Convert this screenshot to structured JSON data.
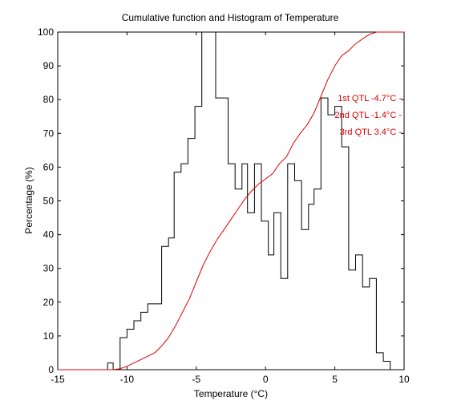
{
  "chart_data": {
    "type": "line",
    "title": "Cumulative function and Histogram of Temperature",
    "xlabel": "Temperature (°C)",
    "ylabel": "Percentage (%)",
    "xlim": [
      -15,
      10
    ],
    "ylim": [
      0,
      100
    ],
    "x_ticks": [
      -15,
      -10,
      -5,
      0,
      5,
      10
    ],
    "y_ticks": [
      0,
      10,
      20,
      30,
      40,
      50,
      60,
      70,
      80,
      90,
      100
    ],
    "grid": false,
    "legend": "none",
    "series": [
      {
        "kind": "step-histogram",
        "color": "#000000",
        "points": [
          [
            -15,
            0
          ],
          [
            -11.4,
            0
          ],
          [
            -11.4,
            2
          ],
          [
            -11,
            2
          ],
          [
            -11,
            0
          ],
          [
            -10.5,
            0
          ],
          [
            -10.5,
            9.5
          ],
          [
            -10,
            9.5
          ],
          [
            -10,
            12
          ],
          [
            -9.5,
            12
          ],
          [
            -9.5,
            14.5
          ],
          [
            -9,
            14.5
          ],
          [
            -9,
            17
          ],
          [
            -8.5,
            17
          ],
          [
            -8.5,
            19.5
          ],
          [
            -7.5,
            19.5
          ],
          [
            -7.5,
            36.5
          ],
          [
            -7,
            36.5
          ],
          [
            -7,
            39
          ],
          [
            -6.6,
            39
          ],
          [
            -6.6,
            58.5
          ],
          [
            -6.1,
            58.5
          ],
          [
            -6.1,
            61
          ],
          [
            -5.6,
            61
          ],
          [
            -5.6,
            68.5
          ],
          [
            -5.1,
            68.5
          ],
          [
            -5.1,
            78
          ],
          [
            -4.6,
            78
          ],
          [
            -4.6,
            100
          ],
          [
            -3.6,
            100
          ],
          [
            -3.6,
            80.5
          ],
          [
            -2.7,
            80.5
          ],
          [
            -2.7,
            61
          ],
          [
            -2.2,
            61
          ],
          [
            -2.2,
            53.5
          ],
          [
            -1.7,
            53.5
          ],
          [
            -1.7,
            61
          ],
          [
            -1.3,
            61
          ],
          [
            -1.3,
            46.5
          ],
          [
            -0.8,
            46.5
          ],
          [
            -0.8,
            61
          ],
          [
            -0.3,
            61
          ],
          [
            -0.3,
            44
          ],
          [
            0.2,
            44
          ],
          [
            0.2,
            34
          ],
          [
            0.6,
            34
          ],
          [
            0.6,
            46.5
          ],
          [
            1.1,
            46.5
          ],
          [
            1.1,
            27
          ],
          [
            1.6,
            27
          ],
          [
            1.6,
            61
          ],
          [
            2.1,
            61
          ],
          [
            2.1,
            56
          ],
          [
            2.6,
            56
          ],
          [
            2.6,
            41.5
          ],
          [
            3.1,
            41.5
          ],
          [
            3.1,
            49
          ],
          [
            3.5,
            49
          ],
          [
            3.5,
            53.5
          ],
          [
            4,
            53.5
          ],
          [
            4,
            80.5
          ],
          [
            4.5,
            80.5
          ],
          [
            4.5,
            75.5
          ],
          [
            5,
            75.5
          ],
          [
            5,
            78
          ],
          [
            5.5,
            78
          ],
          [
            5.5,
            66
          ],
          [
            6,
            66
          ],
          [
            6,
            29.5
          ],
          [
            6.5,
            29.5
          ],
          [
            6.5,
            34
          ],
          [
            7,
            34
          ],
          [
            7,
            24.5
          ],
          [
            7.5,
            24.5
          ],
          [
            7.5,
            27
          ],
          [
            8,
            27
          ],
          [
            8,
            5
          ],
          [
            8.5,
            5
          ],
          [
            8.5,
            2.5
          ],
          [
            9,
            2.5
          ],
          [
            9,
            0
          ],
          [
            10,
            0
          ]
        ]
      },
      {
        "kind": "cumulative",
        "color": "#dd0000",
        "points": [
          [
            -15,
            0
          ],
          [
            -11,
            0
          ],
          [
            -10.5,
            0.3
          ],
          [
            -10,
            1
          ],
          [
            -9.5,
            2
          ],
          [
            -9,
            3
          ],
          [
            -8.5,
            4
          ],
          [
            -8,
            5
          ],
          [
            -7.5,
            7
          ],
          [
            -7,
            9.5
          ],
          [
            -6.5,
            13
          ],
          [
            -6,
            17
          ],
          [
            -5.5,
            21
          ],
          [
            -5,
            26
          ],
          [
            -4.5,
            31
          ],
          [
            -4,
            35
          ],
          [
            -3.5,
            38.5
          ],
          [
            -3,
            41.5
          ],
          [
            -2.5,
            44.5
          ],
          [
            -2,
            47.5
          ],
          [
            -1.5,
            50.5
          ],
          [
            -1,
            53
          ],
          [
            -0.5,
            55
          ],
          [
            0,
            56.5
          ],
          [
            0.5,
            58
          ],
          [
            1,
            61
          ],
          [
            1.5,
            63
          ],
          [
            2,
            67
          ],
          [
            2.5,
            70
          ],
          [
            3,
            72.5
          ],
          [
            3.5,
            76
          ],
          [
            4,
            81
          ],
          [
            4.5,
            86
          ],
          [
            5,
            90
          ],
          [
            5.5,
            93
          ],
          [
            6,
            94.5
          ],
          [
            6.5,
            96.5
          ],
          [
            7,
            98
          ],
          [
            7.5,
            99.3
          ],
          [
            8,
            100
          ],
          [
            10,
            100
          ]
        ]
      }
    ],
    "annotations": [
      {
        "text": "1st QTL -4.7°C",
        "y": 80.5
      },
      {
        "text": "2nd QTL -1.4°C",
        "y": 75.5
      },
      {
        "text": "3rd QTL  3.4°C",
        "y": 70.5
      }
    ],
    "annotation_color": "#dd0000"
  }
}
